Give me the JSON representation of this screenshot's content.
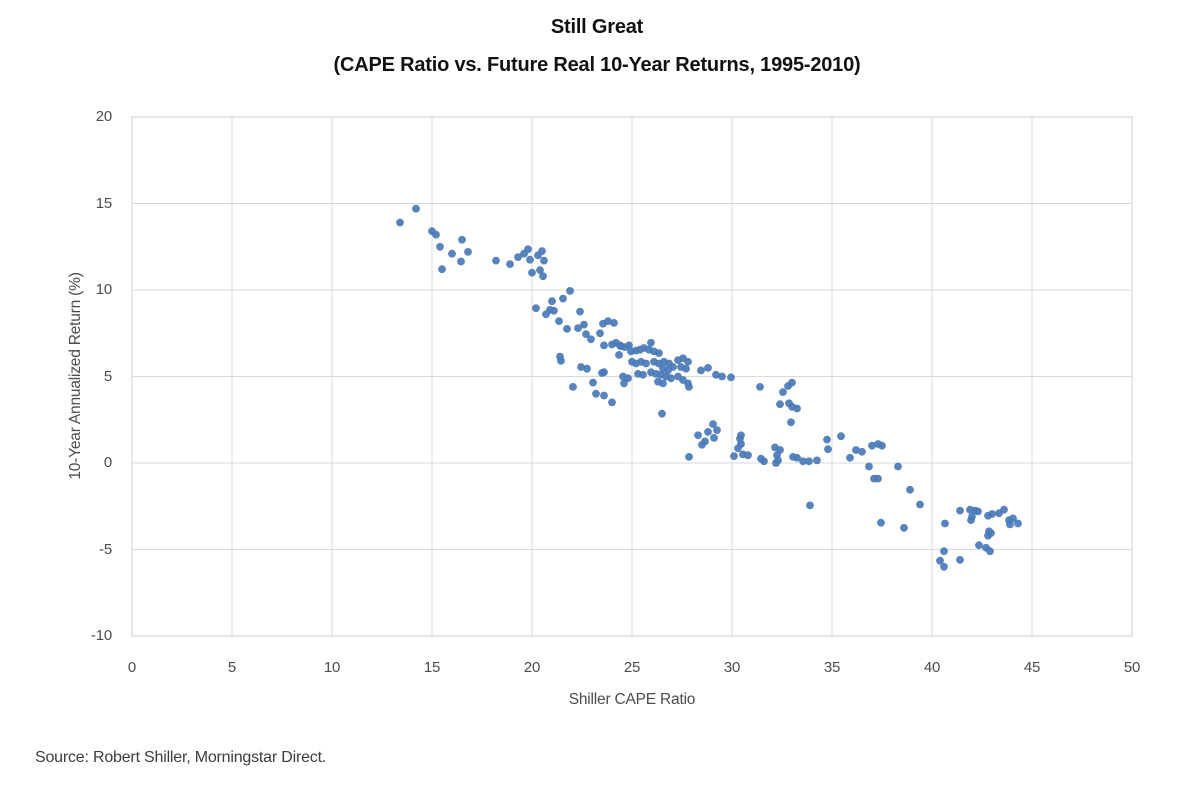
{
  "title": "Still Great",
  "subtitle": "(CAPE Ratio vs. Future Real 10-Year Returns, 1995-2010)",
  "source": "Source: Robert Shiller, Morningstar Direct.",
  "chart_data": {
    "type": "scatter",
    "title": "Still Great",
    "subtitle": "(CAPE Ratio vs. Future Real 10-Year Returns, 1995-2010)",
    "xlabel": "Shiller CAPE Ratio",
    "ylabel": "10-Year  Annualized Return (%)",
    "xlim": [
      0,
      50
    ],
    "ylim": [
      -10,
      20
    ],
    "xticks": [
      0,
      5,
      10,
      15,
      20,
      25,
      30,
      35,
      40,
      45,
      50
    ],
    "yticks": [
      20,
      15,
      10,
      5,
      0,
      -5,
      -10
    ],
    "grid": true,
    "legend": false,
    "point_color": "#4a7ab9",
    "gridline_color": "#d9d9d9",
    "points": [
      [
        13.4,
        13.9
      ],
      [
        14.2,
        14.7
      ],
      [
        15.0,
        13.4
      ],
      [
        15.2,
        13.2
      ],
      [
        15.4,
        12.5
      ],
      [
        16.0,
        12.1
      ],
      [
        16.5,
        12.9
      ],
      [
        16.8,
        12.2
      ],
      [
        16.45,
        11.65
      ],
      [
        15.5,
        11.2
      ],
      [
        18.2,
        11.7
      ],
      [
        18.9,
        11.5
      ],
      [
        19.3,
        11.9
      ],
      [
        19.6,
        12.1
      ],
      [
        19.8,
        12.35
      ],
      [
        19.9,
        11.75
      ],
      [
        20.3,
        12.0
      ],
      [
        20.5,
        12.25
      ],
      [
        20.6,
        11.7
      ],
      [
        20.0,
        11.0
      ],
      [
        20.4,
        11.15
      ],
      [
        20.55,
        10.8
      ],
      [
        20.2,
        8.95
      ],
      [
        20.7,
        8.6
      ],
      [
        20.9,
        8.85
      ],
      [
        21.1,
        8.8
      ],
      [
        21.0,
        9.35
      ],
      [
        21.55,
        9.5
      ],
      [
        21.9,
        9.95
      ],
      [
        22.4,
        8.75
      ],
      [
        21.35,
        8.2
      ],
      [
        21.75,
        7.75
      ],
      [
        22.3,
        7.8
      ],
      [
        22.6,
        8.0
      ],
      [
        22.7,
        7.45
      ],
      [
        22.95,
        7.15
      ],
      [
        23.4,
        7.5
      ],
      [
        23.55,
        8.05
      ],
      [
        23.8,
        8.2
      ],
      [
        24.1,
        8.1
      ],
      [
        24.2,
        6.95
      ],
      [
        24.4,
        6.8
      ],
      [
        24.65,
        6.7
      ],
      [
        24.85,
        6.8
      ],
      [
        21.4,
        6.15
      ],
      [
        21.45,
        5.9
      ],
      [
        22.45,
        5.55
      ],
      [
        22.75,
        5.45
      ],
      [
        23.5,
        5.2
      ],
      [
        23.05,
        4.65
      ],
      [
        22.05,
        4.4
      ],
      [
        23.2,
        4.0
      ],
      [
        23.6,
        3.9
      ],
      [
        24.0,
        3.5
      ],
      [
        23.6,
        6.8
      ],
      [
        24.0,
        6.85
      ],
      [
        24.45,
        6.75
      ],
      [
        24.35,
        6.25
      ],
      [
        24.95,
        6.45
      ],
      [
        25.2,
        6.5
      ],
      [
        25.4,
        6.55
      ],
      [
        25.6,
        6.65
      ],
      [
        25.95,
        6.95
      ],
      [
        25.85,
        6.55
      ],
      [
        26.1,
        6.45
      ],
      [
        26.35,
        6.35
      ],
      [
        25.0,
        5.85
      ],
      [
        25.2,
        5.75
      ],
      [
        25.45,
        5.85
      ],
      [
        25.7,
        5.75
      ],
      [
        26.1,
        5.85
      ],
      [
        26.35,
        5.75
      ],
      [
        26.6,
        5.85
      ],
      [
        26.85,
        5.75
      ],
      [
        26.55,
        5.45
      ],
      [
        26.8,
        5.35
      ],
      [
        27.05,
        5.55
      ],
      [
        27.3,
        5.95
      ],
      [
        27.55,
        6.05
      ],
      [
        27.8,
        5.85
      ],
      [
        27.45,
        5.55
      ],
      [
        27.7,
        5.45
      ],
      [
        24.55,
        5.0
      ],
      [
        24.8,
        4.9
      ],
      [
        23.6,
        5.25
      ],
      [
        25.3,
        5.15
      ],
      [
        25.55,
        5.1
      ],
      [
        25.95,
        5.25
      ],
      [
        26.2,
        5.15
      ],
      [
        26.45,
        5.1
      ],
      [
        26.7,
        5.0
      ],
      [
        26.95,
        4.9
      ],
      [
        26.3,
        4.7
      ],
      [
        26.55,
        4.6
      ],
      [
        27.3,
        5.0
      ],
      [
        27.55,
        4.8
      ],
      [
        27.8,
        4.6
      ],
      [
        27.85,
        4.4
      ],
      [
        24.6,
        4.6
      ],
      [
        28.45,
        5.35
      ],
      [
        28.8,
        5.5
      ],
      [
        29.2,
        5.1
      ],
      [
        29.5,
        5.0
      ],
      [
        29.95,
        4.95
      ],
      [
        31.4,
        4.4
      ],
      [
        32.55,
        4.1
      ],
      [
        32.8,
        4.45
      ],
      [
        33.0,
        4.65
      ],
      [
        32.85,
        3.45
      ],
      [
        33.0,
        3.25
      ],
      [
        33.25,
        3.15
      ],
      [
        32.4,
        3.4
      ],
      [
        32.95,
        2.35
      ],
      [
        26.5,
        2.85
      ],
      [
        28.3,
        1.6
      ],
      [
        28.65,
        1.25
      ],
      [
        28.8,
        1.8
      ],
      [
        29.05,
        2.25
      ],
      [
        29.25,
        1.9
      ],
      [
        29.1,
        1.45
      ],
      [
        28.5,
        1.05
      ],
      [
        27.85,
        0.35
      ],
      [
        30.1,
        0.4
      ],
      [
        30.3,
        0.85
      ],
      [
        30.4,
        1.4
      ],
      [
        30.45,
        1.6
      ],
      [
        30.45,
        1.1
      ],
      [
        30.55,
        0.5
      ],
      [
        30.8,
        0.45
      ],
      [
        31.45,
        0.25
      ],
      [
        31.6,
        0.1
      ],
      [
        32.15,
        0.9
      ],
      [
        32.4,
        0.75
      ],
      [
        32.25,
        0.45
      ],
      [
        32.3,
        0.15
      ],
      [
        32.2,
        0.0
      ],
      [
        33.05,
        0.35
      ],
      [
        33.25,
        0.3
      ],
      [
        33.55,
        0.1
      ],
      [
        33.85,
        0.1
      ],
      [
        34.25,
        0.15
      ],
      [
        34.75,
        1.35
      ],
      [
        34.8,
        0.8
      ],
      [
        35.45,
        1.55
      ],
      [
        35.9,
        0.3
      ],
      [
        36.2,
        0.75
      ],
      [
        36.5,
        0.65
      ],
      [
        36.85,
        -0.2
      ],
      [
        37.0,
        1.0
      ],
      [
        37.3,
        1.1
      ],
      [
        37.5,
        1.0
      ],
      [
        37.1,
        -0.9
      ],
      [
        37.3,
        -0.9
      ],
      [
        38.3,
        -0.2
      ],
      [
        38.9,
        -1.55
      ],
      [
        39.4,
        -2.4
      ],
      [
        33.9,
        -2.45
      ],
      [
        37.45,
        -3.45
      ],
      [
        38.6,
        -3.75
      ],
      [
        40.65,
        -3.5
      ],
      [
        41.4,
        -2.75
      ],
      [
        41.9,
        -2.7
      ],
      [
        42.15,
        -2.75
      ],
      [
        42.3,
        -2.8
      ],
      [
        42.0,
        -3.1
      ],
      [
        41.95,
        -3.3
      ],
      [
        42.8,
        -3.05
      ],
      [
        43.0,
        -2.95
      ],
      [
        43.35,
        -2.9
      ],
      [
        43.6,
        -2.7
      ],
      [
        43.85,
        -3.3
      ],
      [
        44.05,
        -3.2
      ],
      [
        44.3,
        -3.5
      ],
      [
        43.9,
        -3.55
      ],
      [
        42.85,
        -3.95
      ],
      [
        42.95,
        -4.05
      ],
      [
        42.8,
        -4.2
      ],
      [
        42.35,
        -4.75
      ],
      [
        42.7,
        -4.9
      ],
      [
        42.9,
        -5.1
      ],
      [
        40.6,
        -5.1
      ],
      [
        40.4,
        -5.65
      ],
      [
        41.4,
        -5.6
      ],
      [
        40.6,
        -6.0
      ]
    ]
  }
}
